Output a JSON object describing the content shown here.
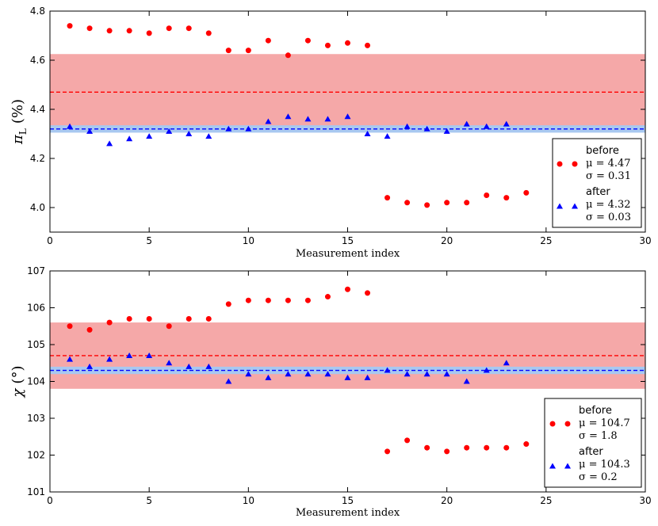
{
  "chart_data": [
    {
      "type": "scatter",
      "xlabel": "Measurement index",
      "ylabel_symbol": "π",
      "ylabel_subscript": "L",
      "ylabel_unit": "(%)",
      "xlim": [
        0,
        30
      ],
      "ylim": [
        3.9,
        4.8
      ],
      "xticks": [
        0,
        5,
        10,
        15,
        20,
        25,
        30
      ],
      "yticks": [
        4.0,
        4.2,
        4.4,
        4.6,
        4.8
      ],
      "ytick_labels": [
        "4.0",
        "4.2",
        "4.4",
        "4.6",
        "4.8"
      ],
      "grid": false,
      "legend_position": "lower-right",
      "series": [
        {
          "name": "before",
          "mu_label": "μ = 4.47",
          "sigma_label": "σ = 0.31",
          "mean": 4.47,
          "sigma": 0.155,
          "marker": "circle",
          "color": "#ff0000",
          "band_color": "#f5a8a8",
          "x": [
            1,
            2,
            3,
            4,
            5,
            6,
            7,
            8,
            9,
            10,
            11,
            12,
            13,
            14,
            15,
            16,
            17,
            18,
            19,
            20,
            21,
            22,
            23,
            24
          ],
          "y": [
            4.74,
            4.73,
            4.72,
            4.72,
            4.71,
            4.73,
            4.73,
            4.71,
            4.64,
            4.64,
            4.68,
            4.62,
            4.68,
            4.66,
            4.67,
            4.66,
            4.04,
            4.02,
            4.01,
            4.02,
            4.02,
            4.05,
            4.04,
            4.06
          ]
        },
        {
          "name": "after",
          "mu_label": "μ = 4.32",
          "sigma_label": "σ = 0.03",
          "mean": 4.32,
          "sigma": 0.015,
          "marker": "triangle",
          "color": "#0000ff",
          "band_color": "#a8c8f0",
          "x": [
            1,
            2,
            3,
            4,
            5,
            6,
            7,
            8,
            9,
            10,
            11,
            12,
            13,
            14,
            15,
            16,
            17,
            18,
            19,
            20,
            21,
            22,
            23
          ],
          "y": [
            4.33,
            4.31,
            4.26,
            4.28,
            4.29,
            4.31,
            4.3,
            4.29,
            4.32,
            4.32,
            4.35,
            4.37,
            4.36,
            4.36,
            4.37,
            4.3,
            4.29,
            4.33,
            4.32,
            4.31,
            4.34,
            4.33,
            4.34
          ]
        }
      ]
    },
    {
      "type": "scatter",
      "xlabel": "Measurement index",
      "ylabel_symbol": "χ",
      "ylabel_unit": "(°)",
      "xlim": [
        0,
        30
      ],
      "ylim": [
        101,
        107
      ],
      "xticks": [
        0,
        5,
        10,
        15,
        20,
        25,
        30
      ],
      "yticks": [
        101,
        102,
        103,
        104,
        105,
        106,
        107
      ],
      "ytick_labels": [
        "101",
        "102",
        "103",
        "104",
        "105",
        "106",
        "107"
      ],
      "grid": false,
      "legend_position": "lower-right",
      "series": [
        {
          "name": "before",
          "mu_label": "μ = 104.7",
          "sigma_label": "σ = 1.8",
          "mean": 104.7,
          "sigma": 0.9,
          "marker": "circle",
          "color": "#ff0000",
          "band_color": "#f5a8a8",
          "x": [
            1,
            2,
            3,
            4,
            5,
            6,
            7,
            8,
            9,
            10,
            11,
            12,
            13,
            14,
            15,
            16,
            17,
            18,
            19,
            20,
            21,
            22,
            23,
            24
          ],
          "y": [
            105.5,
            105.4,
            105.6,
            105.7,
            105.7,
            105.5,
            105.7,
            105.7,
            106.1,
            106.2,
            106.2,
            106.2,
            106.2,
            106.3,
            106.5,
            106.4,
            102.1,
            102.4,
            102.2,
            102.1,
            102.2,
            102.2,
            102.2,
            102.3
          ]
        },
        {
          "name": "after",
          "mu_label": "μ = 104.3",
          "sigma_label": "σ = 0.2",
          "mean": 104.3,
          "sigma": 0.1,
          "marker": "triangle",
          "color": "#0000ff",
          "band_color": "#a8c8f0",
          "x": [
            1,
            2,
            3,
            4,
            5,
            6,
            7,
            8,
            9,
            10,
            11,
            12,
            13,
            14,
            15,
            16,
            17,
            18,
            19,
            20,
            21,
            22,
            23
          ],
          "y": [
            104.6,
            104.4,
            104.6,
            104.7,
            104.7,
            104.5,
            104.4,
            104.4,
            104.0,
            104.2,
            104.1,
            104.2,
            104.2,
            104.2,
            104.1,
            104.1,
            104.3,
            104.2,
            104.2,
            104.2,
            104.0,
            104.3,
            104.5
          ]
        }
      ]
    }
  ]
}
